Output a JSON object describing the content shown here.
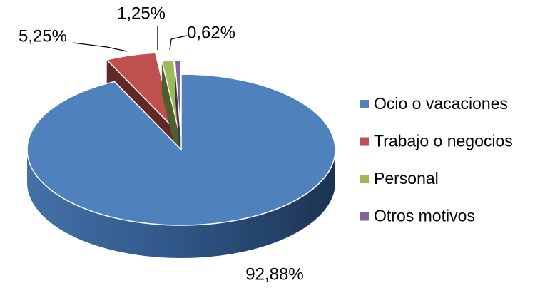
{
  "chart_data": {
    "type": "pie",
    "categories": [
      "Ocio o vacaciones",
      "Trabajo o negocios",
      "Personal",
      "Otros motivos"
    ],
    "values": [
      92.88,
      5.25,
      1.25,
      0.62
    ],
    "value_labels": [
      "92,88%",
      "5,25%",
      "1,25%",
      "0,62%"
    ],
    "colors": [
      "#4f81bd",
      "#c0504d",
      "#9bbb59",
      "#8064a2"
    ],
    "legend": "right"
  }
}
